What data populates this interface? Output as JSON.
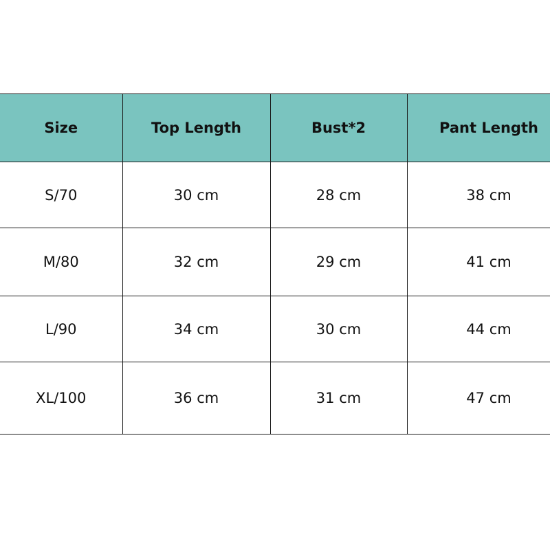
{
  "header_color": "#7AC4BF",
  "columns": [
    "Size",
    "Top Length",
    "Bust*2",
    "Pant Length"
  ],
  "rows": [
    [
      "S/70",
      "30 cm",
      "28 cm",
      "38 cm"
    ],
    [
      "M/80",
      "32 cm",
      "29 cm",
      "41 cm"
    ],
    [
      "L/90",
      "34 cm",
      "30 cm",
      "44 cm"
    ],
    [
      "XL/100",
      "36 cm",
      "31 cm",
      "47 cm"
    ]
  ]
}
